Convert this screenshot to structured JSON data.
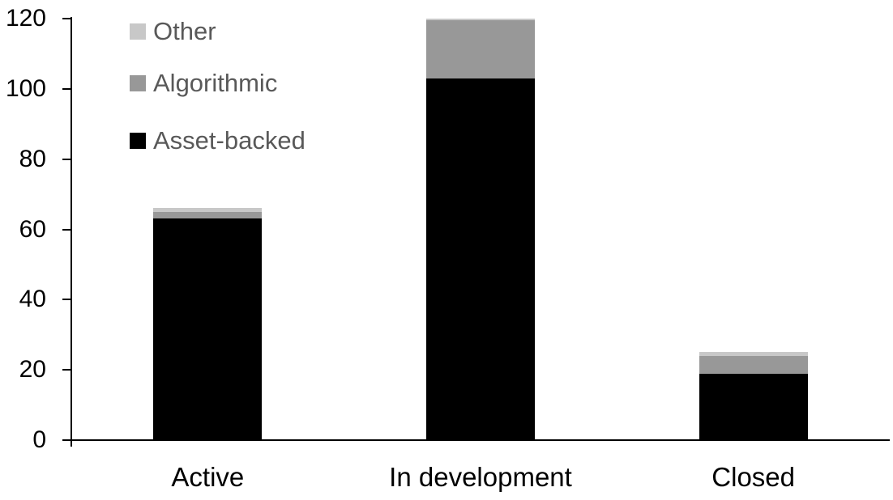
{
  "chart_data": {
    "type": "bar",
    "stacked": true,
    "title": "",
    "xlabel": "",
    "ylabel": "",
    "categories": [
      "Active",
      "In development",
      "Closed"
    ],
    "series": [
      {
        "name": "Asset-backed",
        "color": "#000000",
        "values": [
          63,
          103,
          19
        ]
      },
      {
        "name": "Algorithmic",
        "color": "#989898",
        "values": [
          2,
          16.5,
          5
        ]
      },
      {
        "name": "Other",
        "color": "#C8C8C8",
        "values": [
          1,
          0.5,
          1
        ]
      }
    ],
    "totals": [
      66,
      120,
      25
    ],
    "ylim": [
      0,
      120
    ],
    "yticks": [
      0,
      20,
      40,
      60,
      80,
      100,
      120
    ],
    "grid": false,
    "legend_position": "top-left",
    "legend_order": [
      "Other",
      "Algorithmic",
      "Asset-backed"
    ]
  },
  "colors": {
    "background": "#FFFFFF",
    "axis": "#000000",
    "tick_label_text": "#000000",
    "category_label_text": "#000000",
    "legend_text": "#595959"
  }
}
